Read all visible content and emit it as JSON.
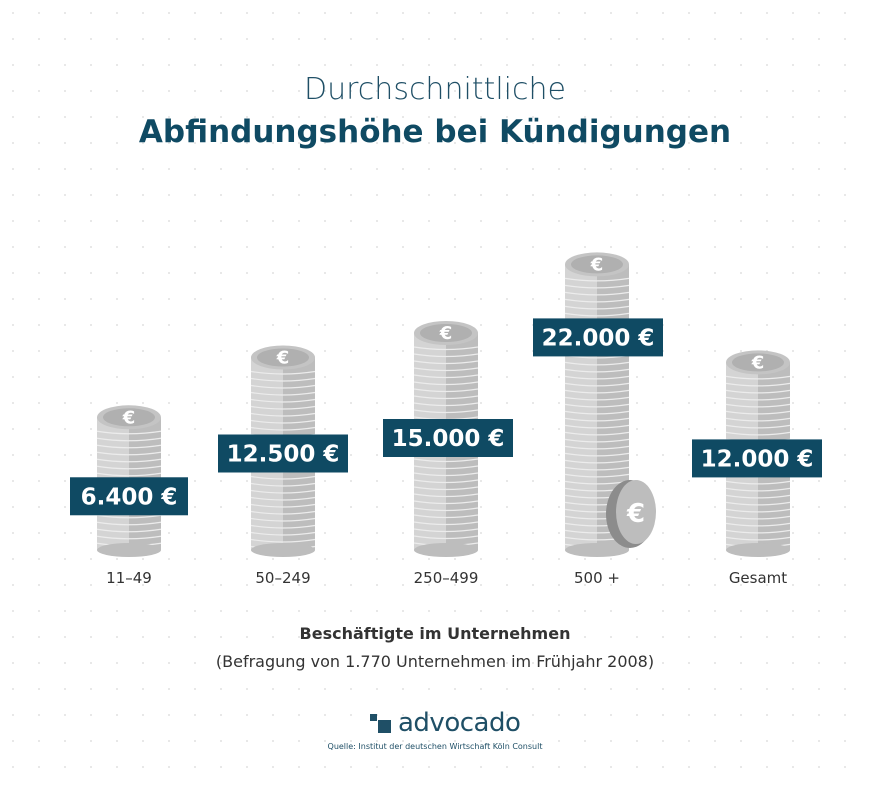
{
  "title_line1": "Durchschnittliche",
  "title_line2": "Abfindungshöhe bei Kündigungen",
  "chart_data": {
    "type": "bar",
    "categories": [
      "11–49",
      "50–249",
      "250–499",
      "500 +",
      "Gesamt"
    ],
    "values": [
      6400,
      12500,
      15000,
      22000,
      12000
    ],
    "data_labels": [
      "6.400 €",
      "12.500 €",
      "15.000 €",
      "22.000 €",
      "12.000 €"
    ],
    "xlabel": "Beschäftigte im Unternehmen",
    "ylabel": "",
    "unit": "€"
  },
  "note": "(Befragung von 1.770 Unternehmen im Frühjahr 2008)",
  "logo_text": "advocado",
  "source": "Quelle: Institut der deutschen Wirtschaft Köln Consult",
  "colors": {
    "label_bg": "#0f4a63",
    "coin": "#c8c8c8",
    "title": "#1f4f66"
  }
}
